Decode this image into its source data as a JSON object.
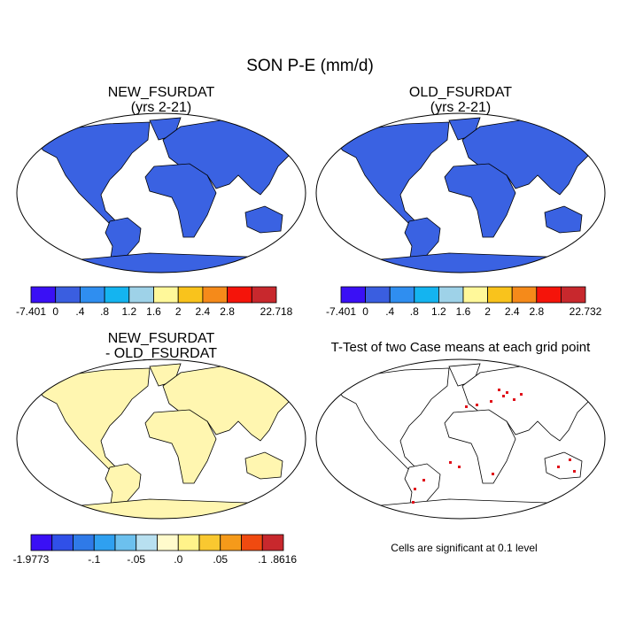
{
  "title": "SON P-E (mm/d)",
  "panels": [
    {
      "title": "NEW_FSURDAT",
      "subtitle": "(yrs 2-21)",
      "land_color": "#3a62e2",
      "colorbar": {
        "colors": [
          "#3a10f5",
          "#3a5ee0",
          "#2f8ef0",
          "#14b4f0",
          "#9ed2e8",
          "#fff89a",
          "#f9c31c",
          "#f58a1a",
          "#f5140a",
          "#c8282d"
        ],
        "labels": [
          "-7.401",
          "0",
          ".4",
          ".8",
          "1.2",
          "1.6",
          "2",
          "2.4",
          "2.8",
          null,
          "22.718"
        ]
      }
    },
    {
      "title": "OLD_FSURDAT",
      "subtitle": "(yrs 2-21)",
      "land_color": "#3a62e2",
      "colorbar": {
        "colors": [
          "#3a10f5",
          "#3a5ee0",
          "#2f8ef0",
          "#14b4f0",
          "#9ed2e8",
          "#fff89a",
          "#f9c31c",
          "#f58a1a",
          "#f5140a",
          "#c8282d"
        ],
        "labels": [
          "-7.401",
          "0",
          ".4",
          ".8",
          "1.2",
          "1.6",
          "2",
          "2.4",
          "2.8",
          null,
          "22.732"
        ]
      }
    },
    {
      "title": "NEW_FSURDAT",
      "subtitle": "- OLD_FSURDAT",
      "land_color": "#fff6b0",
      "colorbar": {
        "colors": [
          "#3a10f5",
          "#3050e8",
          "#2f7ae8",
          "#2fa0f0",
          "#6cc0ee",
          "#b8e0f0",
          "#fffbcc",
          "#fff38a",
          "#f9c830",
          "#f59a1a",
          "#f04a10",
          "#c8282d"
        ],
        "labels": [
          "-1.9773",
          null,
          null,
          "-.1",
          null,
          "-.05",
          null,
          ".0",
          null,
          ".05",
          null,
          ".1",
          ".8616"
        ]
      }
    },
    {
      "title": "T-Test of two Case means at each grid point",
      "land_color": "#ffffff",
      "note": "Cells are significant at 0.1 level"
    }
  ]
}
